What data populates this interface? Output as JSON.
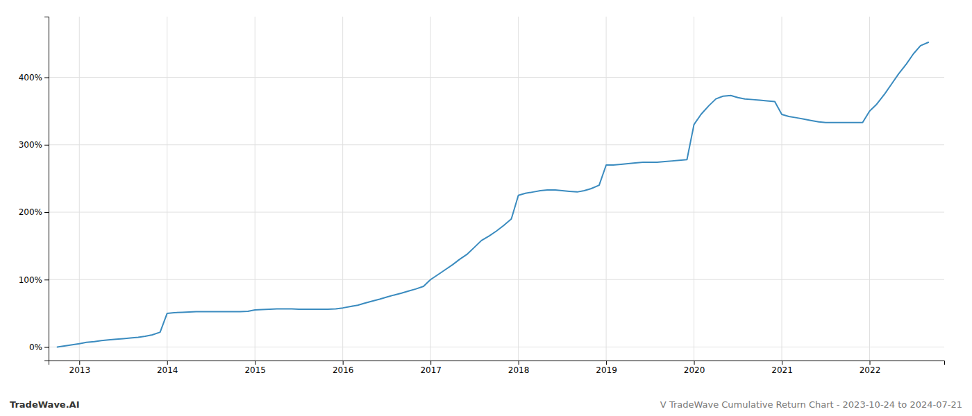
{
  "chart_data": {
    "type": "line",
    "title": "V TradeWave Cumulative Return Chart - 2023-10-24 to 2024-07-21",
    "annotations": [
      "TradeWave.AI"
    ],
    "color": "#3a8bbf",
    "grid": true,
    "x": [
      2012.75,
      2013.0,
      2013.08,
      2013.17,
      2013.25,
      2013.33,
      2013.42,
      2013.5,
      2013.58,
      2013.67,
      2013.75,
      2013.83,
      2013.92,
      2014.0,
      2014.08,
      2014.17,
      2014.25,
      2014.33,
      2014.42,
      2014.5,
      2014.58,
      2014.67,
      2014.75,
      2014.83,
      2014.92,
      2015.0,
      2015.08,
      2015.17,
      2015.25,
      2015.33,
      2015.42,
      2015.5,
      2015.58,
      2015.67,
      2015.75,
      2015.83,
      2015.92,
      2016.0,
      2016.08,
      2016.17,
      2016.25,
      2016.33,
      2016.42,
      2016.5,
      2016.58,
      2016.67,
      2016.75,
      2016.83,
      2016.92,
      2017.0,
      2017.08,
      2017.17,
      2017.25,
      2017.33,
      2017.42,
      2017.5,
      2017.58,
      2017.67,
      2017.75,
      2017.83,
      2017.92,
      2018.0,
      2018.08,
      2018.17,
      2018.25,
      2018.33,
      2018.42,
      2018.5,
      2018.58,
      2018.67,
      2018.75,
      2018.83,
      2018.92,
      2019.0,
      2019.08,
      2019.17,
      2019.25,
      2019.33,
      2019.42,
      2019.5,
      2019.58,
      2019.67,
      2019.75,
      2019.83,
      2019.92,
      2020.0,
      2020.08,
      2020.17,
      2020.25,
      2020.33,
      2020.42,
      2020.5,
      2020.58,
      2020.67,
      2020.75,
      2020.83,
      2020.92,
      2021.0,
      2021.08,
      2021.17,
      2021.25,
      2021.33,
      2021.42,
      2021.5,
      2021.58,
      2021.67,
      2021.75,
      2021.83,
      2021.92,
      2022.0,
      2022.08,
      2022.17,
      2022.25,
      2022.33,
      2022.42,
      2022.5,
      2022.58,
      2022.67
    ],
    "values": [
      0.0,
      5.0,
      7.0,
      8.0,
      9.5,
      10.5,
      11.5,
      12.5,
      13.5,
      14.5,
      16.0,
      18.0,
      22.0,
      50.0,
      51.0,
      51.5,
      52.0,
      52.5,
      52.5,
      52.5,
      52.5,
      52.5,
      52.5,
      52.5,
      53.0,
      55.0,
      55.5,
      56.0,
      56.5,
      56.5,
      56.5,
      56.0,
      56.0,
      56.0,
      56.0,
      56.0,
      56.5,
      58.0,
      60.0,
      62.0,
      65.0,
      68.0,
      71.0,
      74.0,
      77.0,
      80.0,
      83.0,
      86.0,
      90.0,
      100.0,
      107.0,
      115.0,
      122.0,
      130.0,
      138.0,
      148.0,
      158.0,
      165.0,
      172.0,
      180.0,
      190.0,
      225.0,
      228.0,
      230.0,
      232.0,
      233.0,
      233.0,
      232.0,
      231.0,
      230.0,
      232.0,
      235.0,
      240.0,
      270.0,
      270.0,
      271.0,
      272.0,
      273.0,
      274.0,
      274.0,
      274.0,
      275.0,
      276.0,
      277.0,
      278.0,
      330.0,
      345.0,
      358.0,
      368.0,
      372.0,
      373.0,
      370.0,
      368.0,
      367.0,
      366.0,
      365.0,
      364.0,
      345.0,
      342.0,
      340.0,
      338.0,
      336.0,
      334.0,
      333.0,
      333.0,
      333.0,
      333.0,
      333.0,
      333.0,
      350.0,
      360.0,
      375.0,
      390.0,
      405.0,
      420.0,
      435.0,
      447.0,
      452.0
    ],
    "xlim": [
      2012.65,
      2022.85
    ],
    "xticks": [
      2013,
      2014,
      2015,
      2016,
      2017,
      2018,
      2019,
      2020,
      2021,
      2022
    ],
    "ylim": [
      -20,
      490
    ],
    "yticks": [
      {
        "value": 0,
        "label": "0%"
      },
      {
        "value": 100,
        "label": "100%"
      },
      {
        "value": 200,
        "label": "200%"
      },
      {
        "value": 300,
        "label": "300%"
      },
      {
        "value": 400,
        "label": "400%"
      }
    ]
  }
}
